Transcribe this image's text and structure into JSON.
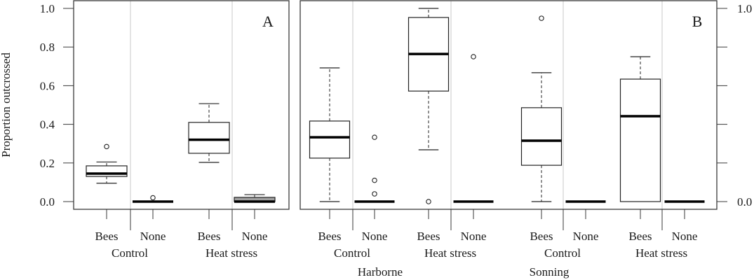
{
  "chart_data": [
    {
      "panel": "A",
      "type": "box",
      "title": "",
      "panel_label": "A",
      "ylabel": "Proportion outcrossed",
      "ylim": [
        0,
        1
      ],
      "yticks": [
        "0.0",
        "0.2",
        "0.4",
        "0.6",
        "0.8",
        "1.0"
      ],
      "groups": [
        "Control",
        "Heat stress"
      ],
      "categories": [
        "Bees",
        "None",
        "Bees",
        "None"
      ],
      "boxes": [
        {
          "group": "Control",
          "label": "Bees",
          "whisker_low": 0.095,
          "q1": 0.13,
          "median": 0.145,
          "q3": 0.185,
          "whisker_high": 0.205,
          "outliers": [
            0.285
          ],
          "fill": "#ffffff"
        },
        {
          "group": "Control",
          "label": "None",
          "whisker_low": 0.0,
          "q1": 0.0,
          "median": 0.0,
          "q3": 0.0,
          "whisker_high": 0.0,
          "outliers": [
            0.02
          ],
          "fill": "#ffffff"
        },
        {
          "group": "Heat stress",
          "label": "Bees",
          "whisker_low": 0.203,
          "q1": 0.25,
          "median": 0.32,
          "q3": 0.41,
          "whisker_high": 0.507,
          "outliers": [],
          "fill": "#ffffff"
        },
        {
          "group": "Heat stress",
          "label": "None",
          "whisker_low": 0.0,
          "q1": 0.0,
          "median": 0.0,
          "q3": 0.022,
          "whisker_high": 0.036,
          "outliers": [],
          "fill": "#a0a0a0"
        }
      ]
    },
    {
      "panel": "B",
      "type": "box",
      "title": "",
      "panel_label": "B",
      "ylabel": "",
      "ylim": [
        0,
        1
      ],
      "yticks": [
        "0.0",
        "",
        "",
        "",
        "",
        "1.0"
      ],
      "sites": [
        "Harborne",
        "Sonning"
      ],
      "groups": [
        "Control",
        "Heat stress",
        "Control",
        "Heat stress"
      ],
      "categories": [
        "Bees",
        "None",
        "Bees",
        "None",
        "Bees",
        "None",
        "Bees",
        "None"
      ],
      "boxes": [
        {
          "site": "Harborne",
          "group": "Control",
          "label": "Bees",
          "whisker_low": 0.0,
          "q1": 0.225,
          "median": 0.333,
          "q3": 0.417,
          "whisker_high": 0.692,
          "outliers": [],
          "fill": "#ffffff"
        },
        {
          "site": "Harborne",
          "group": "Control",
          "label": "None",
          "whisker_low": 0.0,
          "q1": 0.0,
          "median": 0.0,
          "q3": 0.0,
          "whisker_high": 0.0,
          "outliers": [
            0.333,
            0.11,
            0.04
          ],
          "fill": "#ffffff"
        },
        {
          "site": "Harborne",
          "group": "Heat stress",
          "label": "Bees",
          "whisker_low": 0.268,
          "q1": 0.572,
          "median": 0.764,
          "q3": 0.953,
          "whisker_high": 1.0,
          "outliers": [
            0.0
          ],
          "fill": "#ffffff"
        },
        {
          "site": "Harborne",
          "group": "Heat stress",
          "label": "None",
          "whisker_low": 0.0,
          "q1": 0.0,
          "median": 0.0,
          "q3": 0.0,
          "whisker_high": 0.0,
          "outliers": [
            0.75
          ],
          "fill": "#ffffff"
        },
        {
          "site": "Sonning",
          "group": "Control",
          "label": "Bees",
          "whisker_low": 0.0,
          "q1": 0.188,
          "median": 0.315,
          "q3": 0.486,
          "whisker_high": 0.667,
          "outliers": [
            0.949
          ],
          "fill": "#ffffff"
        },
        {
          "site": "Sonning",
          "group": "Control",
          "label": "None",
          "whisker_low": 0.0,
          "q1": 0.0,
          "median": 0.0,
          "q3": 0.0,
          "whisker_high": 0.0,
          "outliers": [],
          "fill": "#ffffff"
        },
        {
          "site": "Sonning",
          "group": "Heat stress",
          "label": "Bees",
          "whisker_low": 0.0,
          "q1": 0.0,
          "median": 0.442,
          "q3": 0.634,
          "whisker_high": 0.75,
          "outliers": [],
          "fill": "#ffffff"
        },
        {
          "site": "Sonning",
          "group": "Heat stress",
          "label": "None",
          "whisker_low": 0.0,
          "q1": 0.0,
          "median": 0.0,
          "q3": 0.0,
          "whisker_high": 0.0,
          "outliers": [],
          "fill": "#ffffff"
        }
      ]
    }
  ],
  "colors": {
    "frame": "#3a3a3a",
    "divider": "#c8c8c8",
    "median": "#000000",
    "gray_fill": "#a0a0a0"
  }
}
